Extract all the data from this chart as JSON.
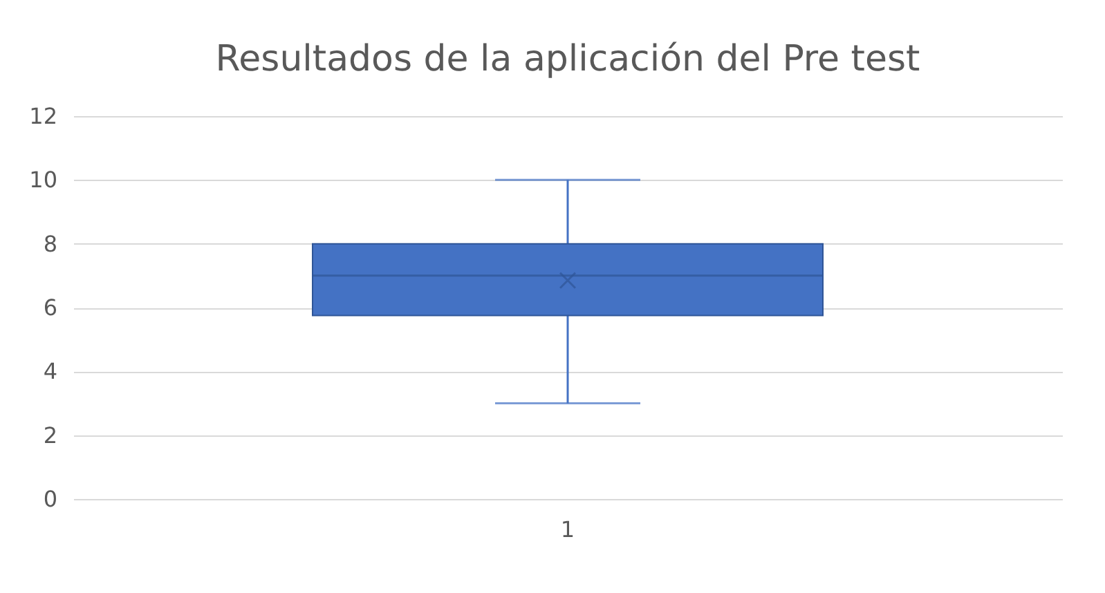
{
  "chart_data": {
    "type": "box",
    "title": "Resultados de la aplicación del Pre test",
    "categories": [
      "1"
    ],
    "boxes": [
      {
        "low": 3,
        "q1": 5.75,
        "median": 7,
        "q3": 8,
        "high": 10,
        "mean": 6.85
      }
    ],
    "color": "#4472c4",
    "ylim": [
      0,
      12
    ],
    "yticks": [
      0,
      2,
      4,
      6,
      8,
      10,
      12
    ],
    "grid": "y",
    "marker": "cross"
  }
}
